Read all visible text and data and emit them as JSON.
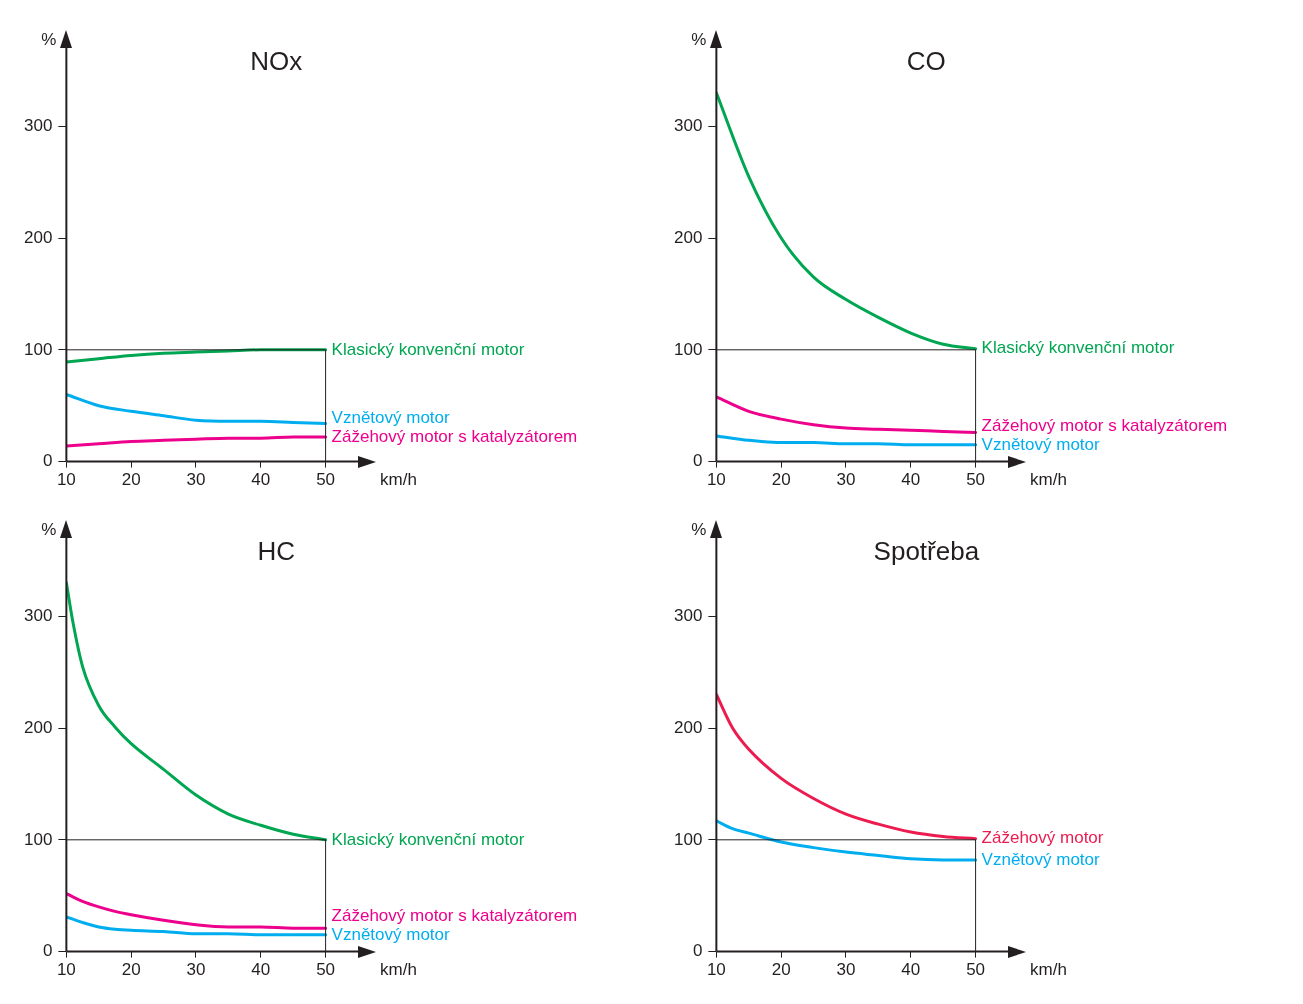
{
  "chart_data": [
    {
      "type": "line",
      "title": "NOx",
      "xlabel": "km/h",
      "ylabel": "%",
      "x": [
        10,
        15,
        20,
        25,
        30,
        35,
        40,
        45,
        50
      ],
      "xlim": [
        10,
        55
      ],
      "xticks": [
        10,
        20,
        30,
        40,
        50
      ],
      "ylim": [
        0,
        370
      ],
      "yticks": [
        0,
        100,
        200,
        300
      ],
      "grid": false,
      "legend": false,
      "marker": "none",
      "line_style": "solid",
      "ref_lines": [
        {
          "axis": "y",
          "value": 100
        },
        {
          "axis": "x",
          "value": 50
        }
      ],
      "series": [
        {
          "name": "Klasický konvenční motor",
          "color": "#00a651",
          "values": [
            89,
            92,
            95,
            97,
            98,
            99,
            100,
            100,
            100
          ]
        },
        {
          "name": "Vznětový motor",
          "color": "#00aeef",
          "values": [
            60,
            50,
            45,
            41,
            37,
            36,
            36,
            35,
            34
          ]
        },
        {
          "name": "Zážehový motor s katalyzátorem",
          "color": "#ec008c",
          "values": [
            14,
            16,
            18,
            19,
            20,
            21,
            21,
            22,
            22
          ]
        }
      ]
    },
    {
      "type": "line",
      "title": "CO",
      "xlabel": "km/h",
      "ylabel": "%",
      "x": [
        10,
        15,
        20,
        25,
        30,
        35,
        40,
        45,
        50
      ],
      "xlim": [
        10,
        55
      ],
      "xticks": [
        10,
        20,
        30,
        40,
        50
      ],
      "ylim": [
        0,
        370
      ],
      "yticks": [
        0,
        100,
        200,
        300
      ],
      "grid": false,
      "legend": false,
      "marker": "none",
      "line_style": "solid",
      "ref_lines": [
        {
          "axis": "y",
          "value": 100
        },
        {
          "axis": "x",
          "value": 50
        }
      ],
      "series": [
        {
          "name": "Klasický konvenční motor",
          "color": "#00a651",
          "values": [
            330,
            255,
            200,
            165,
            145,
            129,
            115,
            105,
            101
          ]
        },
        {
          "name": "Zážehový motor s katalyzátorem",
          "color": "#ec008c",
          "values": [
            58,
            45,
            38,
            33,
            30,
            29,
            28,
            27,
            26
          ]
        },
        {
          "name": "Vznětový motor",
          "color": "#00aeef",
          "values": [
            23,
            19,
            17,
            17,
            16,
            16,
            15,
            15,
            15
          ]
        }
      ]
    },
    {
      "type": "line",
      "title": "HC",
      "xlabel": "km/h",
      "ylabel": "%",
      "x": [
        10,
        11,
        12.5,
        15,
        17.5,
        20,
        25,
        30,
        35,
        40,
        45,
        50
      ],
      "xlim": [
        10,
        55
      ],
      "xticks": [
        10,
        20,
        30,
        40,
        50
      ],
      "ylim": [
        0,
        370
      ],
      "yticks": [
        0,
        100,
        200,
        300
      ],
      "grid": false,
      "legend": false,
      "marker": "none",
      "line_style": "solid",
      "ref_lines": [
        {
          "axis": "y",
          "value": 100
        },
        {
          "axis": "x",
          "value": 50
        }
      ],
      "series": [
        {
          "name": "Klasický konvenční motor",
          "color": "#00a651",
          "values": [
            330,
            295,
            255,
            220,
            201,
            186,
            163,
            140,
            123,
            113,
            105,
            100
          ]
        },
        {
          "name": "Zážehový motor s katalyzátorem",
          "color": "#ec008c",
          "values": [
            52,
            49,
            45,
            40,
            36,
            33,
            28,
            24,
            22,
            22,
            21,
            21
          ]
        },
        {
          "name": "Vznětový motor",
          "color": "#00aeef",
          "values": [
            31,
            29,
            26,
            22,
            20,
            19,
            18,
            16,
            16,
            15,
            15,
            15
          ]
        }
      ]
    },
    {
      "type": "line",
      "title": "Spotřeba",
      "xlabel": "km/h",
      "ylabel": "%",
      "x": [
        10,
        12.5,
        15,
        20,
        25,
        30,
        35,
        40,
        45,
        50
      ],
      "xlim": [
        10,
        55
      ],
      "xticks": [
        10,
        20,
        30,
        40,
        50
      ],
      "ylim": [
        0,
        370
      ],
      "yticks": [
        0,
        100,
        200,
        300
      ],
      "grid": false,
      "legend": false,
      "marker": "none",
      "line_style": "solid",
      "ref_lines": [
        {
          "axis": "y",
          "value": 100
        },
        {
          "axis": "x",
          "value": 50
        }
      ],
      "series": [
        {
          "name": "Zážehový motor",
          "color": "#ed1c50",
          "values": [
            230,
            200,
            181,
            155,
            137,
            123,
            114,
            107,
            103,
            101
          ]
        },
        {
          "name": "Vznětový motor",
          "color": "#00aeef",
          "values": [
            117,
            110,
            106,
            98,
            93,
            89,
            86,
            83,
            82,
            82
          ]
        }
      ]
    }
  ]
}
